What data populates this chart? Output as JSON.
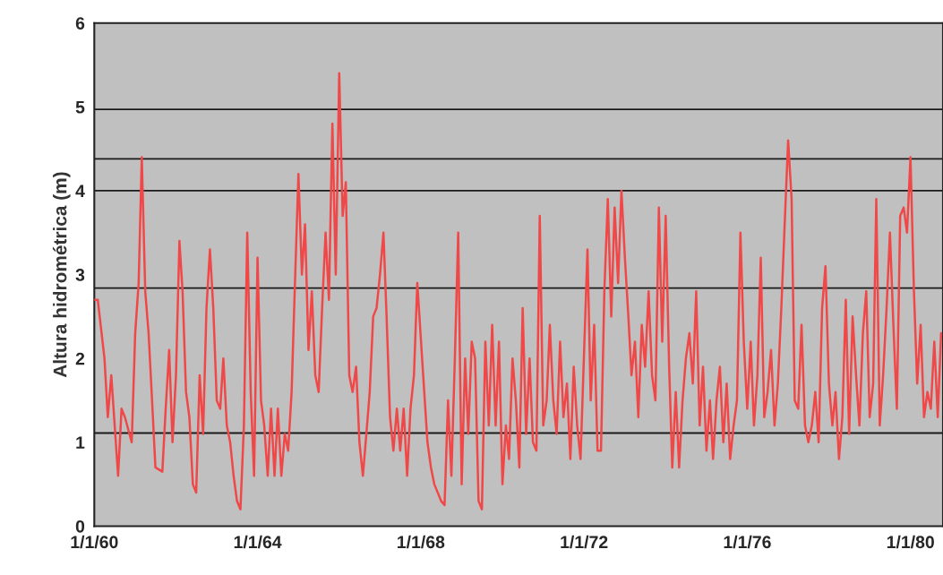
{
  "chart_data": {
    "type": "line",
    "ylabel": "Altura hidrométrica (m)",
    "xlim": [
      "1960-01-01",
      "1980-10-18"
    ],
    "ylim": [
      0,
      6
    ],
    "yticks": [
      0,
      1,
      2,
      3,
      4,
      5,
      6
    ],
    "xticks": [
      {
        "value": "1960-01-01",
        "label": "1/1/60"
      },
      {
        "value": "1964-01-01",
        "label": "1/1/64"
      },
      {
        "value": "1968-01-01",
        "label": "1/1/68"
      },
      {
        "value": "1972-01-01",
        "label": "1/1/72"
      },
      {
        "value": "1976-01-01",
        "label": "1/1/76"
      },
      {
        "value": "1980-01-01",
        "label": "1/1/80"
      }
    ],
    "grid": false,
    "legend": false,
    "marker": "none",
    "line_style": "solid",
    "ref_lines": [
      {
        "axis": "y",
        "value": 4.97,
        "color": "#1a1a1a"
      },
      {
        "axis": "y",
        "value": 4.38,
        "color": "#1a1a1a"
      },
      {
        "axis": "y",
        "value": 4.0,
        "color": "#1a1a1a"
      },
      {
        "axis": "y",
        "value": 2.84,
        "color": "#1a1a1a"
      },
      {
        "axis": "y",
        "value": 1.11,
        "color": "#1a1a1a"
      }
    ],
    "series": [
      {
        "color": "#f04848",
        "x": [
          "1960-01",
          "1960-02",
          "1960-04",
          "1960-05",
          "1960-06",
          "1960-08",
          "1960-09",
          "1960-10",
          "1960-12",
          "1961-01",
          "1961-02",
          "1961-03",
          "1961-04",
          "1961-05",
          "1961-06",
          "1961-07",
          "1961-09",
          "1961-10",
          "1961-11",
          "1961-12",
          "1962-01",
          "1962-02",
          "1962-03",
          "1962-04",
          "1962-05",
          "1962-06",
          "1962-07",
          "1962-08",
          "1962-09",
          "1962-10",
          "1962-11",
          "1962-12",
          "1963-01",
          "1963-02",
          "1963-03",
          "1963-04",
          "1963-05",
          "1963-06",
          "1963-07",
          "1963-08",
          "1963-09",
          "1963-10",
          "1963-11",
          "1963-12",
          "1964-01",
          "1964-02",
          "1964-03",
          "1964-04",
          "1964-05",
          "1964-06",
          "1964-07",
          "1964-08",
          "1964-09",
          "1964-10",
          "1964-11",
          "1964-12",
          "1965-01",
          "1965-02",
          "1965-03",
          "1965-04",
          "1965-05",
          "1965-06",
          "1965-07",
          "1965-08",
          "1965-09",
          "1965-10",
          "1965-11",
          "1965-12",
          "1966-01",
          "1966-02",
          "1966-03",
          "1966-04",
          "1966-05",
          "1966-06",
          "1966-07",
          "1966-08",
          "1966-09",
          "1966-10",
          "1966-11",
          "1966-12",
          "1967-01",
          "1967-02",
          "1967-03",
          "1967-04",
          "1967-05",
          "1967-06",
          "1967-07",
          "1967-08",
          "1967-09",
          "1967-10",
          "1967-11",
          "1967-12",
          "1968-02",
          "1968-03",
          "1968-04",
          "1968-05",
          "1968-07",
          "1968-08",
          "1968-09",
          "1968-10",
          "1968-11",
          "1968-12",
          "1969-01",
          "1969-02",
          "1969-03",
          "1969-04",
          "1969-05",
          "1969-06",
          "1969-07",
          "1969-08",
          "1969-09",
          "1969-10",
          "1969-11",
          "1969-12",
          "1970-01",
          "1970-02",
          "1970-03",
          "1970-04",
          "1970-05",
          "1970-06",
          "1970-07",
          "1970-08",
          "1970-09",
          "1970-10",
          "1970-11",
          "1970-12",
          "1971-01",
          "1971-02",
          "1971-03",
          "1971-04",
          "1971-05",
          "1971-06",
          "1971-07",
          "1971-08",
          "1971-09",
          "1971-10",
          "1971-11",
          "1971-12",
          "1972-02",
          "1972-03",
          "1972-04",
          "1972-05",
          "1972-06",
          "1972-07",
          "1972-08",
          "1972-09",
          "1972-10",
          "1972-11",
          "1972-12",
          "1973-01",
          "1973-02",
          "1973-03",
          "1973-04",
          "1973-05",
          "1973-06",
          "1973-07",
          "1973-08",
          "1973-09",
          "1973-10",
          "1973-11",
          "1973-12",
          "1974-01",
          "1974-02",
          "1974-03",
          "1974-04",
          "1974-05",
          "1974-06",
          "1974-07",
          "1974-08",
          "1974-09",
          "1974-10",
          "1974-11",
          "1974-12",
          "1975-01",
          "1975-02",
          "1975-03",
          "1975-04",
          "1975-05",
          "1975-06",
          "1975-07",
          "1975-08",
          "1975-09",
          "1975-10",
          "1975-11",
          "1975-12",
          "1976-01",
          "1976-02",
          "1976-03",
          "1976-04",
          "1976-05",
          "1976-06",
          "1976-07",
          "1976-08",
          "1976-09",
          "1976-10",
          "1976-11",
          "1976-12",
          "1977-01",
          "1977-02",
          "1977-03",
          "1977-04",
          "1977-05",
          "1977-06",
          "1977-07",
          "1977-08",
          "1977-09",
          "1977-10",
          "1977-11",
          "1977-12",
          "1978-01",
          "1978-02",
          "1978-03",
          "1978-04",
          "1978-05",
          "1978-06",
          "1978-07",
          "1978-08",
          "1978-09",
          "1978-10",
          "1978-11",
          "1978-12",
          "1979-01",
          "1979-02",
          "1979-03",
          "1979-04",
          "1979-05",
          "1979-06",
          "1979-07",
          "1979-08",
          "1979-09",
          "1979-10",
          "1979-11",
          "1979-12",
          "1980-01",
          "1980-02",
          "1980-03",
          "1980-04",
          "1980-05",
          "1980-06",
          "1980-07",
          "1980-08",
          "1980-09",
          "1980-10"
        ],
        "values": [
          2.7,
          2.7,
          2.0,
          1.3,
          1.8,
          0.6,
          1.4,
          1.3,
          1.0,
          2.3,
          2.9,
          4.4,
          2.8,
          2.3,
          1.5,
          0.7,
          0.65,
          1.4,
          2.1,
          1.0,
          1.8,
          3.4,
          2.8,
          1.6,
          1.3,
          0.5,
          0.4,
          1.8,
          1.1,
          2.6,
          3.3,
          2.6,
          1.5,
          1.4,
          2.0,
          1.2,
          1.0,
          0.6,
          0.3,
          0.2,
          1.2,
          3.5,
          1.6,
          0.6,
          3.2,
          1.5,
          1.2,
          0.6,
          1.4,
          0.6,
          1.4,
          0.6,
          1.1,
          0.9,
          1.6,
          2.9,
          4.2,
          3.0,
          3.6,
          2.1,
          2.8,
          1.8,
          1.6,
          2.6,
          3.5,
          2.7,
          4.8,
          3.0,
          5.4,
          3.7,
          4.1,
          1.8,
          1.6,
          1.9,
          1.0,
          0.6,
          1.1,
          1.6,
          2.5,
          2.6,
          3.0,
          3.5,
          2.5,
          1.3,
          0.9,
          1.4,
          0.9,
          1.4,
          0.6,
          1.4,
          1.8,
          2.9,
          1.6,
          1.0,
          0.7,
          0.5,
          0.3,
          0.25,
          1.5,
          0.6,
          2.0,
          3.5,
          0.5,
          2.0,
          1.1,
          2.2,
          2.0,
          0.3,
          0.2,
          2.2,
          1.2,
          2.4,
          1.2,
          2.2,
          0.5,
          1.2,
          0.8,
          2.0,
          1.5,
          0.7,
          2.6,
          1.1,
          2.0,
          1.0,
          0.9,
          3.7,
          1.2,
          1.5,
          2.4,
          1.5,
          1.1,
          2.2,
          1.3,
          1.7,
          0.8,
          1.9,
          1.2,
          0.8,
          3.3,
          1.5,
          2.4,
          0.9,
          0.9,
          2.8,
          3.9,
          2.5,
          3.8,
          2.9,
          4.0,
          3.2,
          2.5,
          1.8,
          2.2,
          1.3,
          2.4,
          1.9,
          2.8,
          1.8,
          1.5,
          3.8,
          2.2,
          3.7,
          1.9,
          0.7,
          1.6,
          0.7,
          1.5,
          2.0,
          2.3,
          1.7,
          2.8,
          1.2,
          1.9,
          0.9,
          1.5,
          0.8,
          1.5,
          1.9,
          1.0,
          1.7,
          0.8,
          1.2,
          1.5,
          3.5,
          2.2,
          1.4,
          2.2,
          1.2,
          1.8,
          3.2,
          1.3,
          1.6,
          2.1,
          1.2,
          1.7,
          2.6,
          3.6,
          4.6,
          3.9,
          1.5,
          1.4,
          2.4,
          1.2,
          1.0,
          1.2,
          1.6,
          1.0,
          2.6,
          3.1,
          1.7,
          1.2,
          1.6,
          0.8,
          1.3,
          2.7,
          1.1,
          2.5,
          1.8,
          1.2,
          2.3,
          2.8,
          1.3,
          1.7,
          3.9,
          1.2,
          1.8,
          2.6,
          3.5,
          2.4,
          1.4,
          3.7,
          3.8,
          3.5,
          4.4,
          2.8,
          1.7,
          2.4,
          1.3,
          1.6,
          1.4,
          2.2,
          1.3,
          2.3
        ]
      }
    ]
  }
}
